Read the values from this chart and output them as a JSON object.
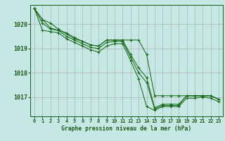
{
  "background_color": "#c5e8e5",
  "grid_color": "#b0b0b0",
  "line_color": "#1a6b1a",
  "marker_color": "#1a6b1a",
  "xlabel": "Graphe pression niveau de la mer (hPa)",
  "xlabel_color": "#1a5c1a",
  "tick_color": "#1a5c1a",
  "axis_color": "#1a5c1a",
  "xlim": [
    -0.5,
    23.5
  ],
  "ylim": [
    1016.2,
    1020.8
  ],
  "yticks": [
    1017,
    1018,
    1019,
    1020
  ],
  "xticks": [
    0,
    1,
    2,
    3,
    4,
    5,
    6,
    7,
    8,
    9,
    10,
    11,
    12,
    13,
    14,
    15,
    16,
    17,
    18,
    19,
    20,
    21,
    22,
    23
  ],
  "series": [
    [
      1020.65,
      1020.2,
      1020.05,
      1019.8,
      1019.6,
      1019.4,
      1019.3,
      1019.15,
      1019.1,
      1019.35,
      1019.35,
      1019.35,
      1019.35,
      1019.35,
      1018.75,
      1017.05,
      1017.05,
      1017.05,
      1017.05,
      1017.05,
      1017.05,
      1017.05,
      1017.05,
      1016.9
    ],
    [
      1020.65,
      1020.2,
      1019.85,
      1019.75,
      1019.65,
      1019.45,
      1019.3,
      1019.15,
      1019.1,
      1019.35,
      1019.35,
      1019.35,
      1018.75,
      1018.2,
      1017.8,
      1016.55,
      1016.7,
      1016.7,
      1016.7,
      1017.05,
      1017.05,
      1017.05,
      1017.05,
      1016.9
    ],
    [
      1020.65,
      1020.05,
      1019.8,
      1019.75,
      1019.5,
      1019.35,
      1019.2,
      1019.05,
      1019.0,
      1019.25,
      1019.3,
      1019.3,
      1018.65,
      1018.0,
      1017.6,
      1016.5,
      1016.65,
      1016.65,
      1016.65,
      1017.05,
      1017.05,
      1017.05,
      1017.05,
      1016.9
    ],
    [
      1020.65,
      1019.75,
      1019.7,
      1019.65,
      1019.4,
      1019.25,
      1019.1,
      1018.95,
      1018.85,
      1019.1,
      1019.2,
      1019.2,
      1018.5,
      1017.75,
      1016.6,
      1016.45,
      1016.6,
      1016.6,
      1016.6,
      1016.95,
      1016.95,
      1017.0,
      1016.95,
      1016.8
    ]
  ]
}
